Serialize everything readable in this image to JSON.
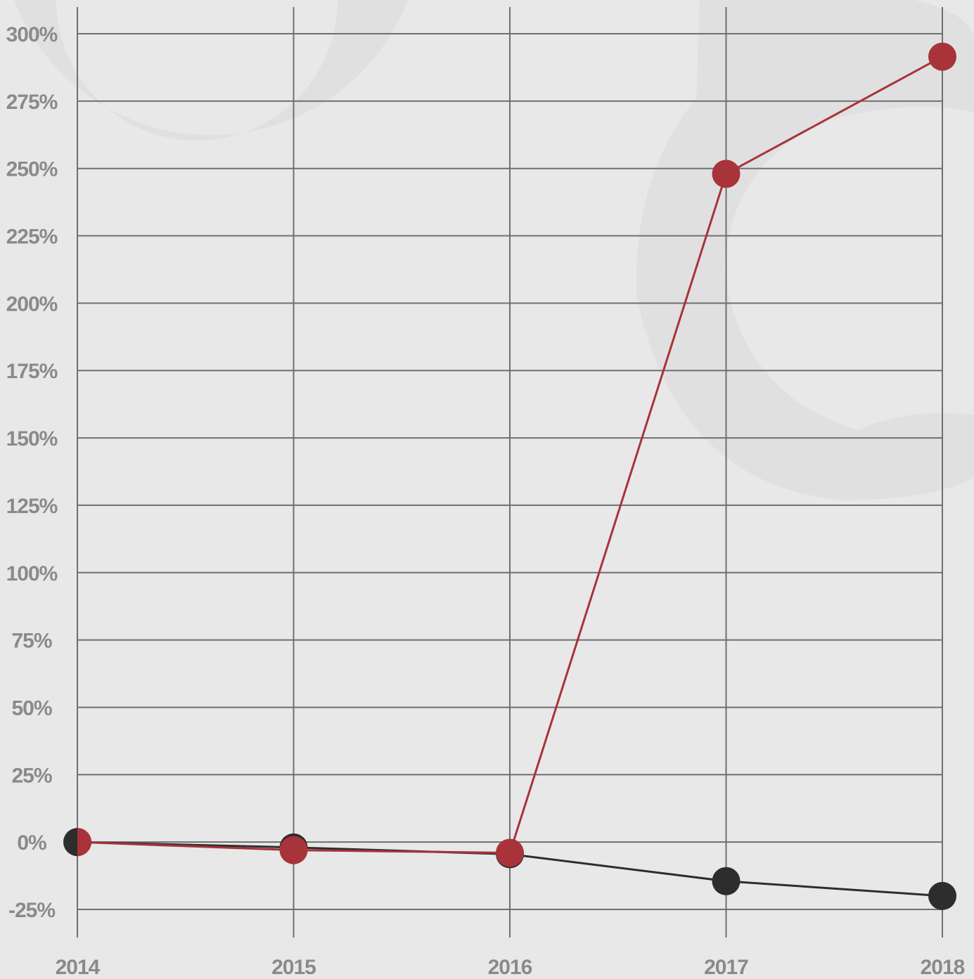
{
  "chart_data": {
    "type": "line",
    "title": "",
    "xlabel": "",
    "ylabel": "",
    "x": [
      "2014",
      "2015",
      "2016",
      "2017",
      "2018"
    ],
    "ylim": [
      -25,
      300
    ],
    "y_ticks": [
      300,
      275,
      250,
      225,
      200,
      175,
      150,
      125,
      100,
      75,
      50,
      25,
      0,
      -25
    ],
    "y_tick_labels": [
      "300%",
      "275%",
      "250%",
      "225%",
      "200%",
      "175%",
      "150%",
      "125%",
      "100%",
      "75%",
      "50%",
      "25%",
      "0%",
      "-25%"
    ],
    "grid": true,
    "legend": "none",
    "series": [
      {
        "color": "#2d2d2d",
        "values": [
          0,
          -2,
          -4.5,
          -14.5,
          -20
        ]
      },
      {
        "color": "#a8333a",
        "values": [
          0,
          -3,
          -4,
          248,
          291.5
        ]
      }
    ]
  },
  "colors": {
    "background": "#e8e8e8",
    "watermark": "#e0e0e0",
    "grid": "#6f6f6f",
    "tick_text": "#8a8a8a"
  }
}
